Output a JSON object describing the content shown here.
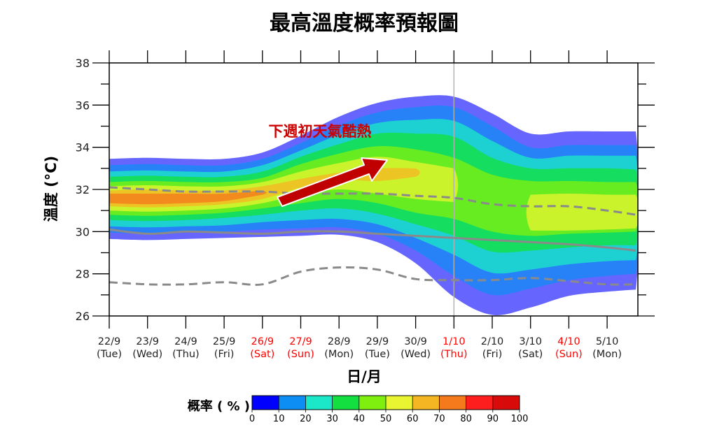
{
  "chart_data": {
    "type": "area",
    "title": "最高溫度概率預報圖",
    "ylabel": "溫度 (°C)",
    "xlabel": "日/月",
    "ylim": [
      26,
      38
    ],
    "yticks": [
      "26",
      "28",
      "30",
      "32",
      "34",
      "36",
      "38"
    ],
    "categories": [
      {
        "date": "22/9",
        "day": "(Tue)",
        "holiday": false
      },
      {
        "date": "23/9",
        "day": "(Wed)",
        "holiday": false
      },
      {
        "date": "24/9",
        "day": "(Thu)",
        "holiday": false
      },
      {
        "date": "25/9",
        "day": "(Fri)",
        "holiday": false
      },
      {
        "date": "26/9",
        "day": "(Sat)",
        "holiday": true
      },
      {
        "date": "27/9",
        "day": "(Sun)",
        "holiday": true
      },
      {
        "date": "28/9",
        "day": "(Mon)",
        "holiday": false
      },
      {
        "date": "29/9",
        "day": "(Tue)",
        "holiday": false
      },
      {
        "date": "30/9",
        "day": "(Wed)",
        "holiday": false
      },
      {
        "date": "1/10",
        "day": "(Thu)",
        "holiday": true
      },
      {
        "date": "2/10",
        "day": "(Fri)",
        "holiday": false
      },
      {
        "date": "3/10",
        "day": "(Sat)",
        "holiday": false
      },
      {
        "date": "4/10",
        "day": "(Sun)",
        "holiday": true
      },
      {
        "date": "5/10",
        "day": "(Mon)",
        "holiday": false
      }
    ],
    "x_values": [
      0,
      1,
      2,
      3,
      4,
      5,
      6,
      7,
      8,
      9,
      10,
      11,
      12,
      13,
      13.75
    ],
    "divider_at_category": "1/10",
    "probability_bands": [
      {
        "level": 0,
        "lower": [
          29.65,
          29.6,
          29.65,
          29.7,
          29.75,
          29.8,
          29.85,
          29.5,
          28.5,
          26.9,
          26.05,
          26.4,
          26.95,
          27.15,
          27.25
        ],
        "upper": [
          33.45,
          33.5,
          33.45,
          33.45,
          33.75,
          34.55,
          35.45,
          36.1,
          36.4,
          36.4,
          35.6,
          34.65,
          34.75,
          34.75,
          34.75
        ]
      },
      {
        "level": 10,
        "lower": [
          29.95,
          29.9,
          29.95,
          30.0,
          30.1,
          30.15,
          30.2,
          29.9,
          29.1,
          27.9,
          27.0,
          27.3,
          27.7,
          27.9,
          28.0
        ],
        "upper": [
          33.15,
          33.2,
          33.15,
          33.15,
          33.45,
          34.2,
          35.05,
          35.65,
          35.9,
          35.9,
          35.0,
          34.0,
          34.1,
          34.1,
          34.1
        ]
      },
      {
        "level": 20,
        "lower": [
          30.25,
          30.2,
          30.25,
          30.3,
          30.45,
          30.55,
          30.6,
          30.35,
          29.7,
          28.9,
          28.05,
          28.2,
          28.45,
          28.6,
          28.65
        ],
        "upper": [
          32.85,
          32.9,
          32.85,
          32.85,
          33.15,
          33.85,
          34.6,
          35.15,
          35.3,
          35.25,
          34.3,
          33.5,
          33.6,
          33.6,
          33.6
        ]
      },
      {
        "level": 30,
        "lower": [
          30.55,
          30.5,
          30.55,
          30.65,
          30.8,
          31.0,
          31.1,
          30.85,
          30.35,
          29.8,
          29.05,
          29.1,
          29.25,
          29.35,
          29.35
        ],
        "upper": [
          32.6,
          32.65,
          32.6,
          32.6,
          32.85,
          33.55,
          34.15,
          34.65,
          34.65,
          34.5,
          33.5,
          33.0,
          33.0,
          33.0,
          32.95
        ]
      },
      {
        "level": 40,
        "lower": [
          30.8,
          30.75,
          30.8,
          30.9,
          31.1,
          31.35,
          31.55,
          31.35,
          30.9,
          30.6,
          30.0,
          29.8,
          29.9,
          29.95,
          30.0
        ],
        "upper": [
          32.35,
          32.4,
          32.35,
          32.35,
          32.55,
          33.2,
          33.7,
          34.05,
          33.9,
          33.5,
          32.7,
          32.4,
          32.4,
          32.35,
          32.35
        ]
      },
      {
        "level": 50,
        "lower": [
          31.0,
          30.95,
          31.0,
          31.1,
          31.35,
          31.75,
          32.0,
          31.8,
          31.55,
          31.4,
          null,
          30.05,
          30.05,
          30.1,
          30.15
        ],
        "upper": [
          32.15,
          32.2,
          32.15,
          32.15,
          32.35,
          32.85,
          33.25,
          33.55,
          33.3,
          33.0,
          null,
          31.75,
          31.8,
          31.75,
          31.75
        ]
      },
      {
        "level": 60,
        "lower": [
          31.2,
          31.15,
          31.2,
          31.3,
          31.55,
          32.1,
          32.45,
          32.4,
          32.6,
          null,
          null,
          null,
          null,
          null,
          null
        ],
        "upper": [
          31.95,
          32.0,
          31.95,
          31.95,
          32.15,
          32.5,
          32.8,
          33.0,
          33.0,
          null,
          null,
          null,
          null,
          null,
          null
        ]
      },
      {
        "level": 70,
        "lower": [
          31.35,
          31.3,
          31.35,
          31.45,
          31.75,
          null,
          null,
          null,
          null,
          null,
          null,
          null,
          null,
          null,
          null
        ],
        "upper": [
          31.8,
          31.8,
          31.8,
          31.8,
          31.95,
          null,
          null,
          null,
          null,
          null,
          null,
          null,
          null,
          null,
          null
        ]
      }
    ],
    "lines": [
      {
        "style": "dashed",
        "values": [
          32.1,
          32.0,
          31.9,
          31.9,
          31.9,
          31.8,
          31.8,
          31.8,
          31.7,
          31.6,
          31.3,
          31.2,
          31.2,
          31.0,
          30.8
        ]
      },
      {
        "style": "solid",
        "values": [
          30.1,
          29.9,
          30.0,
          29.95,
          29.9,
          30.0,
          30.0,
          29.9,
          29.8,
          29.7,
          29.6,
          29.5,
          29.4,
          29.25,
          29.1
        ]
      },
      {
        "style": "dashed",
        "values": [
          27.6,
          27.5,
          27.5,
          27.6,
          27.5,
          28.1,
          28.3,
          28.2,
          27.75,
          27.7,
          27.7,
          27.8,
          27.65,
          27.5,
          27.5
        ]
      }
    ],
    "annotation": {
      "text": "下週初天氣酷熱",
      "color": "#cc0000"
    },
    "colorbar": {
      "title": "概率 ( % )",
      "ticks": [
        "0",
        "10",
        "20",
        "30",
        "40",
        "50",
        "60",
        "70",
        "80",
        "90",
        "100"
      ],
      "colors": [
        "#0000ff",
        "#0d8ef5",
        "#1be8c8",
        "#13e040",
        "#7fef10",
        "#e8f530",
        "#f5b623",
        "#f57a1b",
        "#ff1e1e",
        "#d80a0a"
      ]
    },
    "colors": {
      "holiday_label": "#ff0000",
      "normal_label": "#222222",
      "line": "#8a8a8a",
      "arrow": "#c00000",
      "divider": "#b0b0b0"
    }
  }
}
